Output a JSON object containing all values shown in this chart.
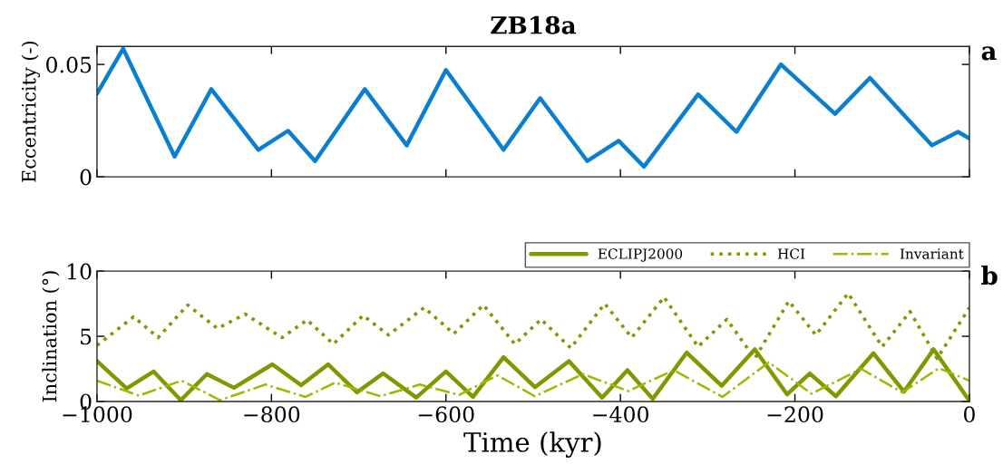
{
  "chart_data": [
    {
      "type": "line",
      "title": "ZB18a",
      "ylabel": "Eccentricity (-)",
      "annotations": [
        "a"
      ],
      "xlim": [
        -1000,
        0
      ],
      "xticks": [
        -1000,
        -800,
        -600,
        -400,
        -200,
        0
      ],
      "ylim": [
        0,
        0.058
      ],
      "yticks": [
        0,
        0.05
      ],
      "tick_labels": "y",
      "grid": false,
      "legend": false,
      "line_style": "solid",
      "series": [
        {
          "color": "#0a7fcf",
          "x": [
            -1000,
            -970,
            -911,
            -869,
            -815,
            -781,
            -750,
            -693,
            -645,
            -600,
            -534,
            -492,
            -438,
            -402,
            -373,
            -311,
            -267,
            -216,
            -154,
            -114,
            -43,
            -13,
            0
          ],
          "values": [
            0.037,
            0.057,
            0.009,
            0.039,
            0.012,
            0.0205,
            0.007,
            0.039,
            0.014,
            0.0475,
            0.012,
            0.035,
            0.007,
            0.016,
            0.0045,
            0.0367,
            0.02,
            0.05,
            0.028,
            0.044,
            0.014,
            0.02,
            0.017
          ]
        }
      ]
    },
    {
      "type": "line",
      "xlabel": "Time (kyr)",
      "ylabel": "Inclination (°)",
      "annotations": [
        "b"
      ],
      "xlim": [
        -1000,
        0
      ],
      "xticks": [
        -1000,
        -800,
        -600,
        -400,
        -200,
        0
      ],
      "ylim": [
        0,
        10
      ],
      "yticks": [
        0,
        5,
        10
      ],
      "grid": false,
      "legend": "top right",
      "series": [
        {
          "name": "ECLIPJ2000",
          "color": "#7d9b00",
          "line_style": "solid",
          "x": [
            -1000,
            -966,
            -935,
            -904,
            -874,
            -843,
            -799,
            -766,
            -735,
            -702,
            -672,
            -634,
            -600,
            -569,
            -534,
            -498,
            -459,
            -421,
            -392,
            -363,
            -324,
            -284,
            -246,
            -209,
            -183,
            -153,
            -110,
            -75,
            -41,
            0
          ],
          "values": [
            3.1,
            1.0,
            2.3,
            0.1,
            2.1,
            1.05,
            2.85,
            1.25,
            2.85,
            0.7,
            2.15,
            0.3,
            2.3,
            0.35,
            3.4,
            1.1,
            3.1,
            0.3,
            2.4,
            0.2,
            3.75,
            1.2,
            4.0,
            0.55,
            2.15,
            0.4,
            3.7,
            0.75,
            4.0,
            0.05
          ]
        },
        {
          "name": "HCI",
          "color": "#7d9b00",
          "line_style": "dotted",
          "x": [
            -1000,
            -958,
            -930,
            -896,
            -862,
            -830,
            -788,
            -759,
            -729,
            -695,
            -666,
            -625,
            -591,
            -557,
            -521,
            -491,
            -457,
            -418,
            -387,
            -350,
            -311,
            -278,
            -246,
            -207,
            -176,
            -139,
            -100,
            -68,
            -37,
            0
          ],
          "values": [
            4.3,
            6.5,
            4.9,
            7.4,
            5.6,
            6.7,
            4.9,
            6.25,
            4.4,
            6.6,
            5.1,
            7.2,
            5.2,
            7.4,
            4.4,
            6.3,
            4.1,
            7.5,
            4.9,
            8.0,
            4.2,
            6.3,
            3.3,
            7.7,
            5.1,
            8.3,
            4.2,
            6.9,
            3.3,
            7.2
          ]
        },
        {
          "name": "Invariant",
          "color": "#99bb00",
          "line_style": "dashdot",
          "x": [
            -1000,
            -952,
            -903,
            -859,
            -807,
            -761,
            -727,
            -675,
            -630,
            -585,
            -541,
            -498,
            -443,
            -391,
            -339,
            -283,
            -230,
            -181,
            -124,
            -77,
            -35,
            0
          ],
          "values": [
            1.6,
            0.45,
            1.6,
            0.1,
            1.3,
            0.35,
            1.45,
            0.4,
            1.3,
            0.5,
            2.0,
            0.4,
            2.1,
            0.8,
            2.4,
            0.35,
            3.0,
            0.6,
            2.5,
            0.7,
            2.55,
            1.6
          ]
        }
      ]
    }
  ]
}
